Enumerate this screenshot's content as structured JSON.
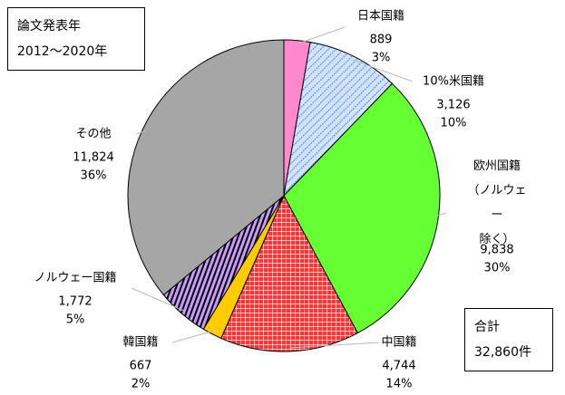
{
  "chart_data": {
    "type": "pie",
    "categories": [
      "日本国籍",
      "10%米国籍",
      "欧州国籍\n（ノルウェー\n除く）",
      "中国籍",
      "韓国籍",
      "ノルウェー国籍",
      "その他"
    ],
    "values": [
      889,
      3126,
      9838,
      4744,
      667,
      1772,
      11824
    ],
    "value_labels": [
      "889",
      "3,126",
      "9,838",
      "4,744",
      "667",
      "1,772",
      "11,824"
    ],
    "shares": [
      3,
      10,
      30,
      14,
      2,
      5,
      36
    ],
    "share_labels": [
      "3%",
      "10%",
      "30%",
      "14%",
      "2%",
      "5%",
      "36%"
    ],
    "colors": [
      "#ff88cc",
      "#cfe2ff",
      "#66ff33",
      "#ff3333",
      "#ffcc00",
      "#cc99ff",
      "#a6a6a6"
    ],
    "patterns": [
      "none",
      "diagonal",
      "none",
      "grid",
      "none",
      "vertical",
      "none"
    ],
    "note": {
      "title": "論文発表年",
      "period": "2012～2020年"
    },
    "total": {
      "label": "合計",
      "value": 32860,
      "value_label": "32,860件"
    }
  }
}
